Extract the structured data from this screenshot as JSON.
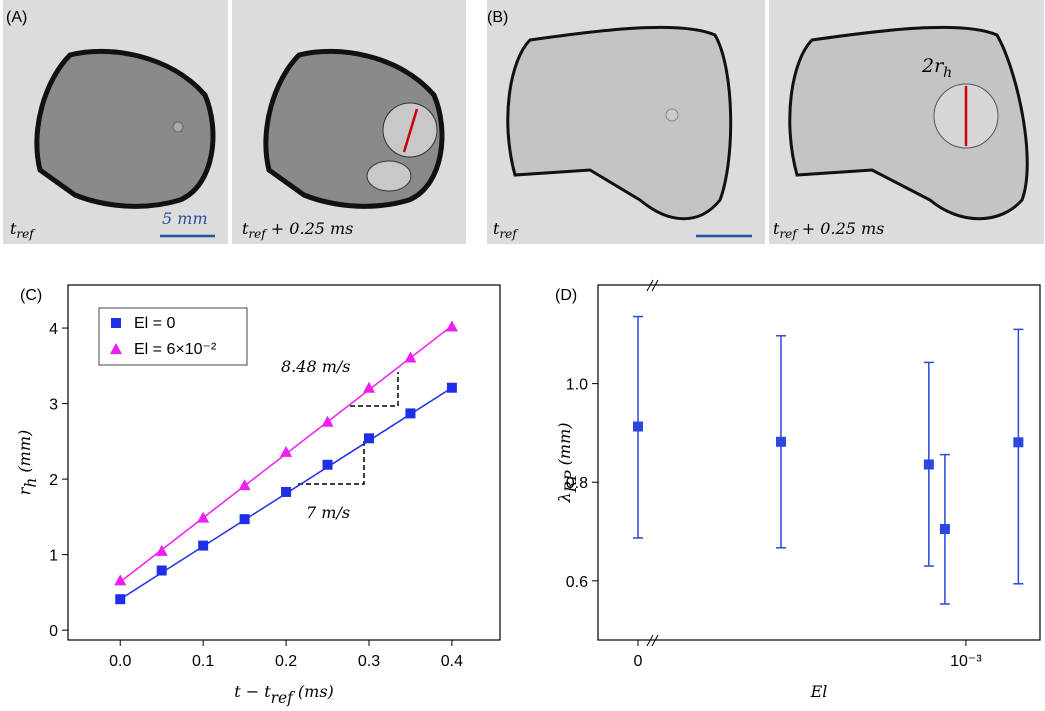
{
  "images": [
    {
      "label": "(A)",
      "frames": [
        {
          "time": {
            "base": "t",
            "sub": "ref"
          },
          "scale_bar": "5 mm"
        },
        {
          "time": {
            "base": "t",
            "sub": "ref",
            "rest": " + 0.25 ms"
          }
        }
      ]
    },
    {
      "label": "(B)",
      "frames": [
        {
          "time": {
            "base": "t",
            "sub": "ref"
          }
        },
        {
          "time": {
            "base": "t",
            "sub": "ref",
            "rest": " + 0.25 ms"
          },
          "annotation": {
            "base": "2r",
            "sub": "h"
          }
        }
      ]
    }
  ],
  "chart_data": [
    {
      "type": "scatter",
      "panel_label": "(C)",
      "xlabel": {
        "base": "t − t",
        "sub": "ref",
        "rest": " (ms)"
      },
      "ylabel": {
        "base": "r",
        "sub": "h",
        "rest": " (mm)"
      },
      "x": [
        0,
        0.05,
        0.1,
        0.15,
        0.2,
        0.25,
        0.3,
        0.35,
        0.4
      ],
      "series": [
        {
          "name": "El = 0",
          "color": "#1f2fe8",
          "marker": "square",
          "values": [
            0.41,
            0.79,
            1.12,
            1.47,
            1.83,
            2.19,
            2.54,
            2.87,
            3.21
          ]
        },
        {
          "name": "El = 6×10⁻²",
          "color": "#f01ef0",
          "marker": "triangle",
          "values": [
            0.66,
            1.05,
            1.49,
            1.92,
            2.36,
            2.76,
            3.21,
            3.61,
            4.02
          ]
        }
      ],
      "fit_lines": [
        {
          "color": "#1f2fe8",
          "x": [
            0,
            0.4
          ],
          "values": [
            0.41,
            3.21
          ]
        },
        {
          "color": "#f01ef0",
          "x": [
            0,
            0.4
          ],
          "values": [
            0.64,
            4.03
          ]
        }
      ],
      "annotations": [
        "8.48 m/s",
        "7 m/s"
      ],
      "xlim": [
        -0.063,
        0.458
      ],
      "ylim": [
        -0.13,
        4.57
      ],
      "xticks": [
        {
          "value": 0,
          "label": "0.0"
        },
        0.1,
        0.2,
        0.3,
        0.4
      ],
      "yticks": [
        0,
        1,
        2,
        3,
        4
      ],
      "legend": "upper left"
    },
    {
      "type": "errorbar",
      "panel_label": "(D)",
      "xlabel": {
        "base": "El"
      },
      "ylabel": {
        "base": "λ",
        "sub": "RP",
        "rest": " (mm)"
      },
      "color": "#2b47e0",
      "x": [
        0,
        0.000436,
        0.000887,
        0.000936,
        0.00116
      ],
      "values": [
        0.913,
        0.882,
        0.836,
        0.705,
        0.881
      ],
      "upper": [
        1.136,
        1.097,
        1.043,
        0.856,
        1.11
      ],
      "lower": [
        0.687,
        0.667,
        0.63,
        0.553,
        0.594
      ],
      "xlim": [
        -0.000122,
        0.001226
      ],
      "ylim": [
        0.48,
        1.2
      ],
      "xticks": [
        0,
        {
          "value": 0.001,
          "label": "10⁻³"
        }
      ],
      "yticks": [
        {
          "value": 0.6,
          "label": "0.6"
        },
        {
          "value": 0.8,
          "label": "0.8"
        },
        {
          "value": 1,
          "label": "1.0"
        }
      ]
    }
  ]
}
